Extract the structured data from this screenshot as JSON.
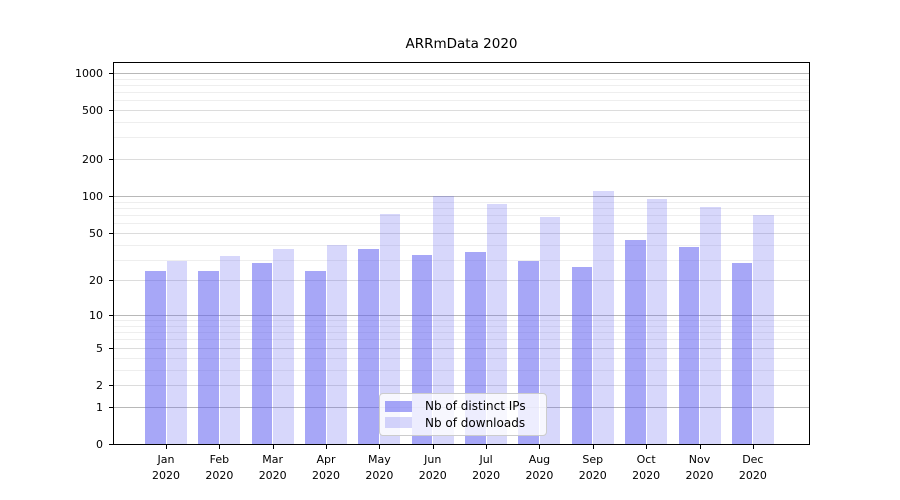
{
  "title": "ARRmData 2020",
  "chart_data": {
    "type": "bar",
    "title": "ARRmData 2020",
    "categories": [
      "Jan",
      "Feb",
      "Mar",
      "Apr",
      "May",
      "Jun",
      "Jul",
      "Aug",
      "Sep",
      "Oct",
      "Nov",
      "Dec"
    ],
    "year": "2020",
    "series": [
      {
        "name": "Nb of distinct IPs",
        "color": "rgba(95,95,240,0.55)",
        "values": [
          24,
          24,
          28,
          24,
          37,
          33,
          35,
          29,
          26,
          44,
          38,
          28
        ]
      },
      {
        "name": "Nb of downloads",
        "color": "rgba(95,95,240,0.25)",
        "values": [
          29,
          32,
          37,
          40,
          71,
          100,
          87,
          68,
          110,
          95,
          82,
          70
        ]
      }
    ],
    "yscale": "log1p",
    "yticks": [
      0,
      1,
      2,
      5,
      10,
      20,
      50,
      100,
      200,
      500,
      1000
    ],
    "ylim": [
      0,
      1226
    ],
    "grid": "both",
    "legend_position": "lower-center"
  },
  "colors": {
    "major_grid": "#b8b8b8",
    "mid_grid": "#dcdcdc",
    "minor_grid": "#eeeeee",
    "spine": "#000000"
  }
}
